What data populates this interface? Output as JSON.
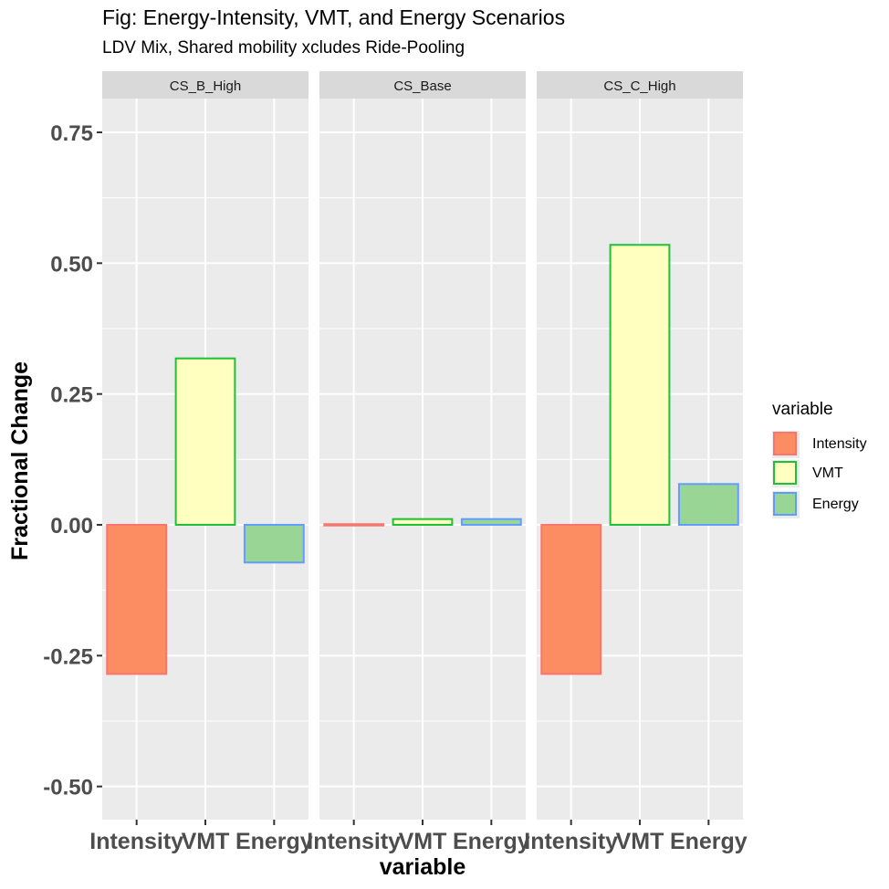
{
  "chart_data": {
    "type": "bar",
    "title": "Fig: Energy-Intensity, VMT, and Energy Scenarios",
    "subtitle": "LDV Mix, Shared mobility xcludes Ride-Pooling",
    "xlabel": "variable",
    "ylabel": "Fractional Change",
    "ylim": [
      -0.56,
      0.8
    ],
    "yticks": [
      0.75,
      0.5,
      0.25,
      0.0,
      -0.25,
      -0.5
    ],
    "ytick_labels": [
      "0.75",
      "0.50",
      "0.25",
      "0.00",
      "-0.25",
      "-0.50"
    ],
    "grid": true,
    "legend_title": "variable",
    "legend_position": "right",
    "categories": [
      "Intensity",
      "VMT",
      "Energy"
    ],
    "series_colors": [
      {
        "name": "Intensity",
        "fill": "#fc8d62",
        "border": "#f8766d"
      },
      {
        "name": "VMT",
        "fill": "#ffffc0",
        "border": "#1fbf3a"
      },
      {
        "name": "Energy",
        "fill": "#99d594",
        "border": "#619cff"
      }
    ],
    "facets": [
      {
        "label": "CS_B_High",
        "values": [
          -0.285,
          0.318,
          -0.072
        ]
      },
      {
        "label": "CS_Base",
        "values": [
          0.0,
          0.011,
          0.011
        ]
      },
      {
        "label": "CS_C_High",
        "values": [
          -0.285,
          0.535,
          0.078
        ]
      }
    ]
  }
}
